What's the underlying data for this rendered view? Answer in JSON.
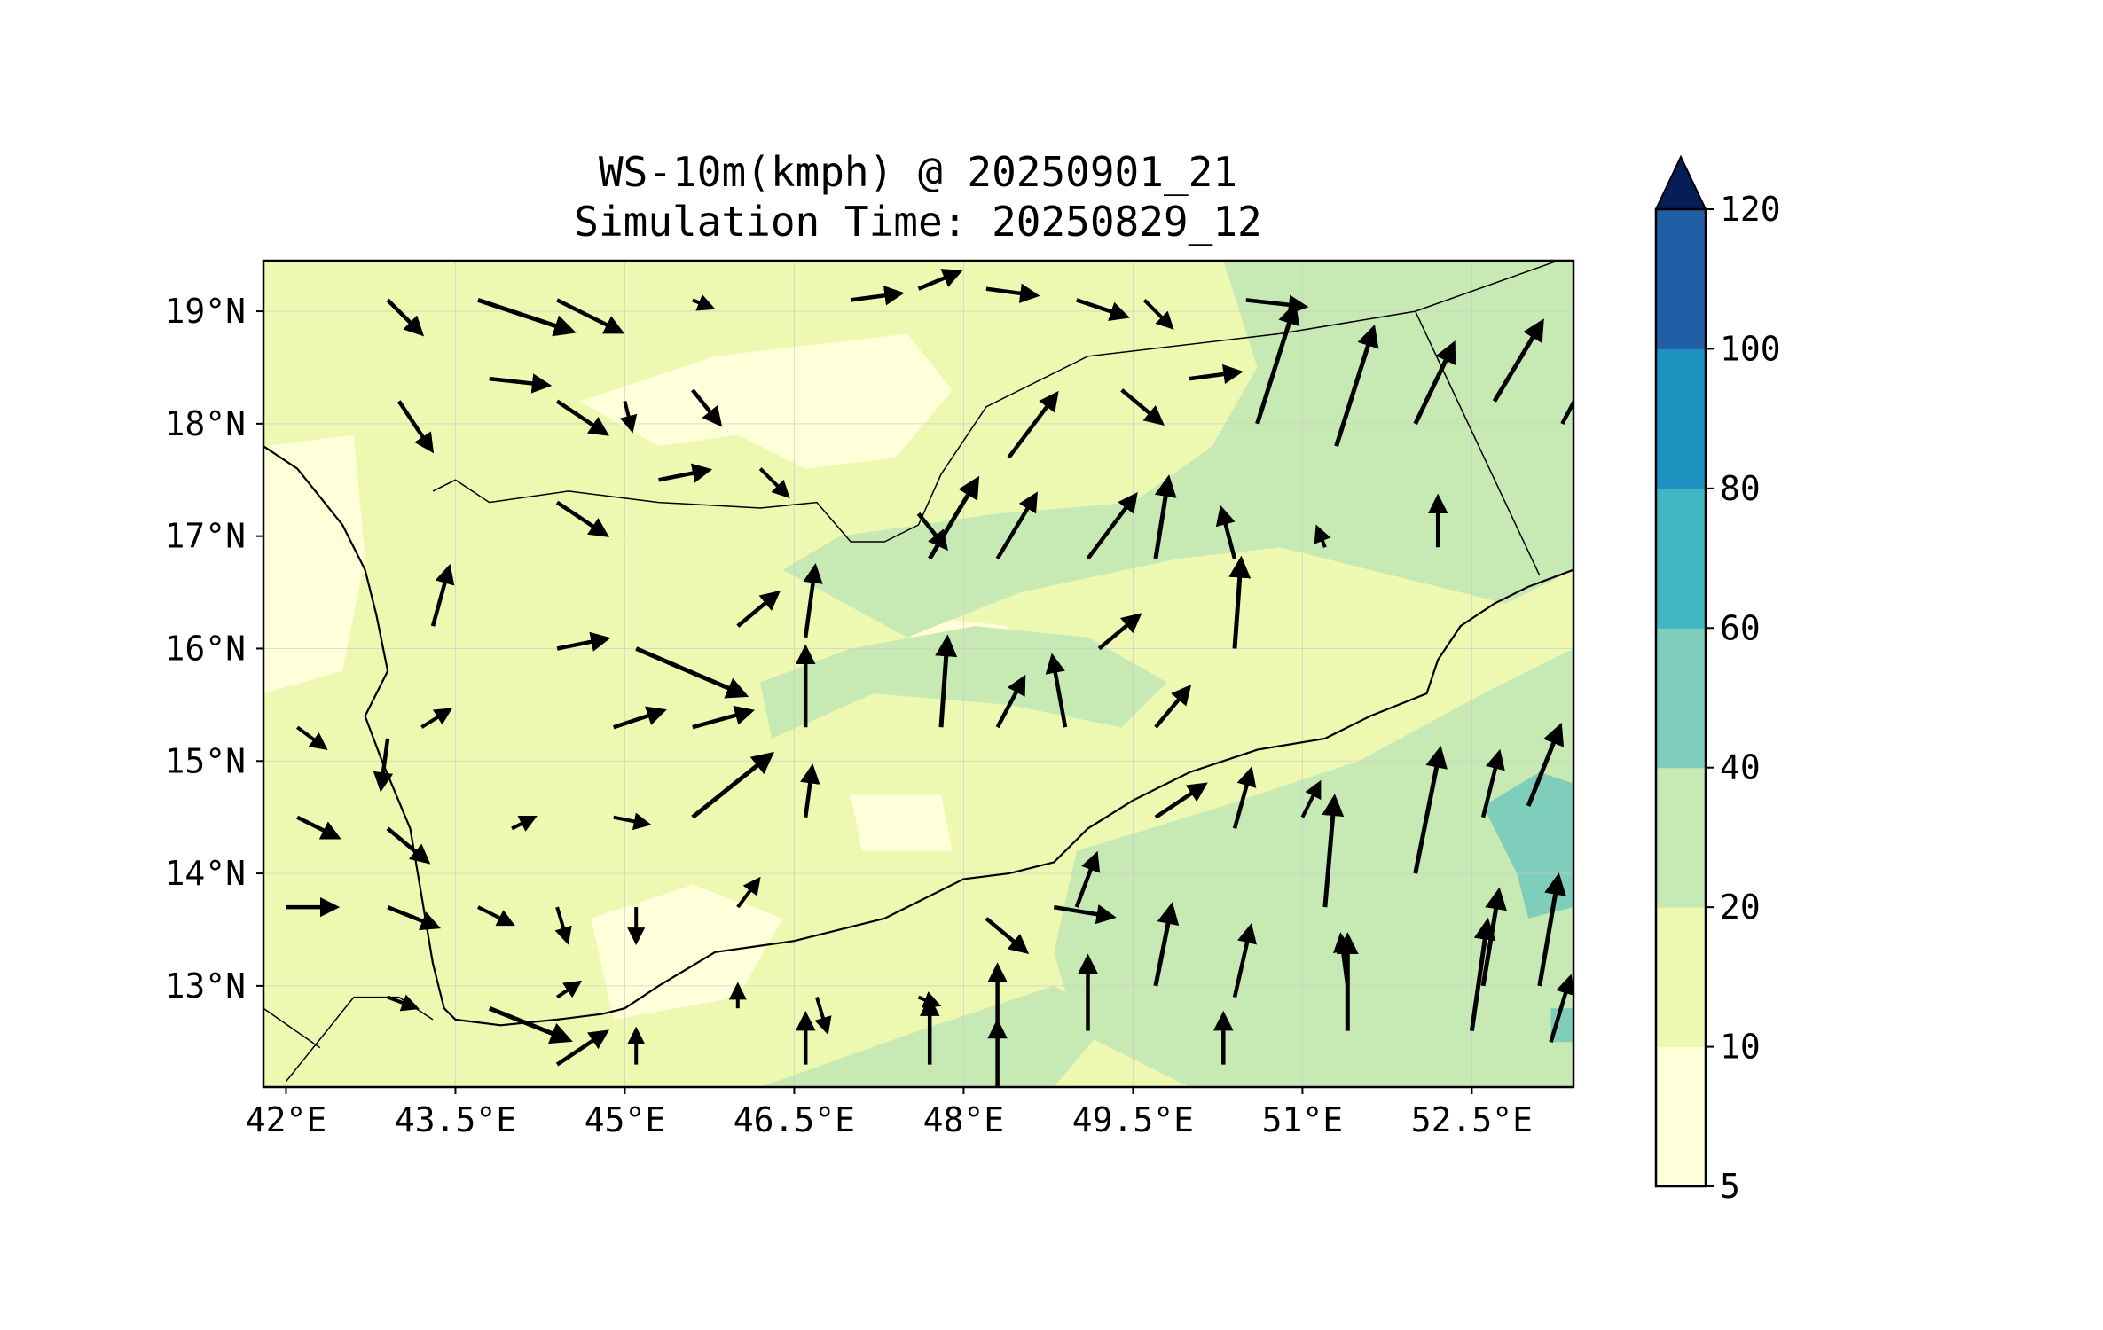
{
  "chart_data": {
    "type": "heatmap",
    "title": "WS-10m(kmph) @ 20250901_21",
    "subtitle": "Simulation Time: 20250829_12",
    "xlim": [
      41.8,
      53.4
    ],
    "ylim": [
      12.1,
      19.45
    ],
    "x_ticks": [
      42,
      43.5,
      45,
      46.5,
      48,
      49.5,
      51,
      52.5
    ],
    "x_tick_labels": [
      "42°E",
      "43.5°E",
      "45°E",
      "46.5°E",
      "48°E",
      "49.5°E",
      "51°E",
      "52.5°E"
    ],
    "y_ticks": [
      13,
      14,
      15,
      16,
      17,
      18,
      19
    ],
    "y_tick_labels": [
      "13°N",
      "14°N",
      "15°N",
      "16°N",
      "17°N",
      "18°N",
      "19°N"
    ],
    "grid": true,
    "colorbar": {
      "levels": [
        5,
        10,
        20,
        40,
        60,
        80,
        100,
        120
      ],
      "labels": [
        "5",
        "10",
        "20",
        "40",
        "60",
        "80",
        "100",
        "120"
      ],
      "colors": [
        "#ffffd9",
        "#edf8b1",
        "#c7e9b4",
        "#7fcdbb",
        "#41b6c4",
        "#1d91c0",
        "#225ea8",
        "#0c2c84"
      ],
      "extend_color": "#081d58",
      "extend": "max"
    },
    "fill_regions": [
      {
        "name": "low-wind-white",
        "level": 5,
        "polygon": [
          [
            44.6,
            18.2
          ],
          [
            45.8,
            18.6
          ],
          [
            47.5,
            18.8
          ],
          [
            47.9,
            18.3
          ],
          [
            47.4,
            17.7
          ],
          [
            46.6,
            17.6
          ],
          [
            46.0,
            17.9
          ],
          [
            45.3,
            17.8
          ]
        ]
      },
      {
        "name": "low-wind-white",
        "level": 5,
        "polygon": [
          [
            41.8,
            17.8
          ],
          [
            42.6,
            17.9
          ],
          [
            42.7,
            16.8
          ],
          [
            42.5,
            15.8
          ],
          [
            41.8,
            15.6
          ]
        ]
      },
      {
        "name": "low-wind-white",
        "level": 5,
        "polygon": [
          [
            44.7,
            13.6
          ],
          [
            45.6,
            13.9
          ],
          [
            46.4,
            13.6
          ],
          [
            46.0,
            12.9
          ],
          [
            44.9,
            12.7
          ]
        ]
      },
      {
        "name": "low-wind-white",
        "level": 5,
        "polygon": [
          [
            47.0,
            14.7
          ],
          [
            47.8,
            14.7
          ],
          [
            47.9,
            14.2
          ],
          [
            47.1,
            14.2
          ]
        ]
      },
      {
        "name": "low-wind-white",
        "level": 5,
        "polygon": [
          [
            47.5,
            16.3
          ],
          [
            48.4,
            16.2
          ],
          [
            48.4,
            15.8
          ],
          [
            47.6,
            15.8
          ]
        ]
      },
      {
        "name": "moderate-wind",
        "level": 20,
        "polygon": [
          [
            50.3,
            19.45
          ],
          [
            53.4,
            19.45
          ],
          [
            53.4,
            16.7
          ],
          [
            52.8,
            16.4
          ],
          [
            51.6,
            16.7
          ],
          [
            50.8,
            16.9
          ],
          [
            49.9,
            16.8
          ],
          [
            48.5,
            16.5
          ],
          [
            47.5,
            16.1
          ],
          [
            46.4,
            16.7
          ],
          [
            46.9,
            17.0
          ],
          [
            48.3,
            17.2
          ],
          [
            49.5,
            17.3
          ],
          [
            50.2,
            17.8
          ],
          [
            50.6,
            18.5
          ]
        ]
      },
      {
        "name": "moderate-wind",
        "level": 20,
        "polygon": [
          [
            46.3,
            15.2
          ],
          [
            47.2,
            15.6
          ],
          [
            48.4,
            15.5
          ],
          [
            49.4,
            15.3
          ],
          [
            49.8,
            15.7
          ],
          [
            49.1,
            16.1
          ],
          [
            48.1,
            16.2
          ],
          [
            47.0,
            16.0
          ],
          [
            46.2,
            15.7
          ]
        ]
      },
      {
        "name": "moderate-wind",
        "level": 20,
        "polygon": [
          [
            49.0,
            14.2
          ],
          [
            50.3,
            14.6
          ],
          [
            51.5,
            15.0
          ],
          [
            52.6,
            15.6
          ],
          [
            53.4,
            16.0
          ],
          [
            53.4,
            12.1
          ],
          [
            50.0,
            12.1
          ],
          [
            49.0,
            12.6
          ],
          [
            48.8,
            13.3
          ]
        ]
      },
      {
        "name": "moderate-wind",
        "level": 20,
        "polygon": [
          [
            46.2,
            12.1
          ],
          [
            47.6,
            12.6
          ],
          [
            48.8,
            13.0
          ],
          [
            49.3,
            12.7
          ],
          [
            48.8,
            12.1
          ]
        ]
      },
      {
        "name": "strong-wind",
        "level": 40,
        "polygon": [
          [
            52.6,
            14.6
          ],
          [
            53.1,
            14.9
          ],
          [
            53.4,
            14.8
          ],
          [
            53.4,
            13.7
          ],
          [
            53.0,
            13.6
          ],
          [
            52.9,
            14.0
          ]
        ]
      },
      {
        "name": "strong-wind",
        "level": 40,
        "polygon": [
          [
            53.2,
            12.8
          ],
          [
            53.4,
            12.8
          ],
          [
            53.4,
            12.5
          ],
          [
            53.2,
            12.5
          ]
        ]
      }
    ],
    "coastline": [
      [
        41.8,
        17.8
      ],
      [
        42.1,
        17.6
      ],
      [
        42.5,
        17.1
      ],
      [
        42.7,
        16.7
      ],
      [
        42.8,
        16.3
      ],
      [
        42.9,
        15.8
      ],
      [
        42.7,
        15.4
      ],
      [
        42.85,
        15.0
      ],
      [
        43.1,
        14.4
      ],
      [
        43.2,
        13.8
      ],
      [
        43.3,
        13.2
      ],
      [
        43.4,
        12.8
      ],
      [
        43.5,
        12.7
      ],
      [
        43.9,
        12.65
      ],
      [
        44.4,
        12.7
      ],
      [
        44.8,
        12.75
      ],
      [
        45.0,
        12.8
      ],
      [
        45.3,
        13.0
      ],
      [
        45.8,
        13.3
      ],
      [
        46.5,
        13.4
      ],
      [
        47.3,
        13.6
      ],
      [
        48.0,
        13.95
      ],
      [
        48.4,
        14.0
      ],
      [
        48.8,
        14.1
      ],
      [
        49.1,
        14.4
      ],
      [
        49.5,
        14.65
      ],
      [
        50.0,
        14.9
      ],
      [
        50.6,
        15.1
      ],
      [
        51.2,
        15.2
      ],
      [
        51.6,
        15.4
      ],
      [
        52.1,
        15.6
      ],
      [
        52.2,
        15.9
      ],
      [
        52.4,
        16.2
      ],
      [
        52.7,
        16.4
      ],
      [
        53.0,
        16.55
      ],
      [
        53.4,
        16.7
      ]
    ],
    "borders": [
      [
        [
          43.3,
          17.4
        ],
        [
          43.5,
          17.5
        ],
        [
          43.8,
          17.3
        ],
        [
          44.5,
          17.4
        ],
        [
          45.3,
          17.3
        ],
        [
          46.2,
          17.25
        ],
        [
          46.7,
          17.3
        ],
        [
          47.0,
          16.95
        ],
        [
          47.3,
          16.95
        ],
        [
          47.6,
          17.1
        ],
        [
          47.8,
          17.55
        ],
        [
          48.2,
          18.15
        ],
        [
          49.1,
          18.6
        ],
        [
          50.8,
          18.8
        ],
        [
          52.0,
          19.0
        ],
        [
          53.4,
          19.5
        ]
      ],
      [
        [
          52.0,
          19.0
        ],
        [
          53.1,
          16.65
        ]
      ],
      [
        [
          42.0,
          12.15
        ],
        [
          42.6,
          12.9
        ],
        [
          43.0,
          12.9
        ],
        [
          43.3,
          12.7
        ]
      ],
      [
        [
          41.8,
          12.8
        ],
        [
          42.3,
          12.45
        ]
      ]
    ],
    "wind_vectors": [
      {
        "lon": 42.9,
        "lat": 19.1,
        "u": 1.0,
        "v": -1.0
      },
      {
        "lon": 43.7,
        "lat": 19.1,
        "u": 3.0,
        "v": -1.0
      },
      {
        "lon": 44.4,
        "lat": 19.1,
        "u": 2.0,
        "v": -1.0
      },
      {
        "lon": 45.6,
        "lat": 19.1,
        "u": 0.5,
        "v": -0.2
      },
      {
        "lon": 47.0,
        "lat": 19.1,
        "u": 1.5,
        "v": 0.2
      },
      {
        "lon": 47.6,
        "lat": 19.2,
        "u": 1.2,
        "v": 0.5
      },
      {
        "lon": 48.2,
        "lat": 19.2,
        "u": 1.5,
        "v": -0.2
      },
      {
        "lon": 49.0,
        "lat": 19.1,
        "u": 1.5,
        "v": -0.5
      },
      {
        "lon": 49.6,
        "lat": 19.1,
        "u": 0.8,
        "v": -0.8
      },
      {
        "lon": 50.5,
        "lat": 19.1,
        "u": 1.8,
        "v": -0.2
      },
      {
        "lon": 43.0,
        "lat": 18.2,
        "u": 1.0,
        "v": -1.5
      },
      {
        "lon": 43.8,
        "lat": 18.4,
        "u": 1.8,
        "v": -0.2
      },
      {
        "lon": 44.4,
        "lat": 18.2,
        "u": 1.5,
        "v": -1.0
      },
      {
        "lon": 45.0,
        "lat": 18.2,
        "u": 0.2,
        "v": -0.8
      },
      {
        "lon": 45.6,
        "lat": 18.3,
        "u": 0.8,
        "v": -1.0
      },
      {
        "lon": 48.4,
        "lat": 17.7,
        "u": 1.5,
        "v": 2.0
      },
      {
        "lon": 49.4,
        "lat": 18.3,
        "u": 1.2,
        "v": -1.0
      },
      {
        "lon": 50.0,
        "lat": 18.4,
        "u": 1.5,
        "v": 0.2
      },
      {
        "lon": 50.6,
        "lat": 18.0,
        "u": 1.2,
        "v": 3.8
      },
      {
        "lon": 51.3,
        "lat": 17.8,
        "u": 1.2,
        "v": 3.8
      },
      {
        "lon": 52.0,
        "lat": 18.0,
        "u": 1.2,
        "v": 2.5
      },
      {
        "lon": 52.7,
        "lat": 18.2,
        "u": 1.5,
        "v": 2.5
      },
      {
        "lon": 53.3,
        "lat": 18.0,
        "u": 0.8,
        "v": 1.5
      },
      {
        "lon": 44.4,
        "lat": 17.3,
        "u": 1.5,
        "v": -1.0
      },
      {
        "lon": 45.3,
        "lat": 17.5,
        "u": 1.5,
        "v": 0.3
      },
      {
        "lon": 46.2,
        "lat": 17.6,
        "u": 0.8,
        "v": -0.8
      },
      {
        "lon": 47.6,
        "lat": 17.2,
        "u": 0.8,
        "v": -1.0
      },
      {
        "lon": 47.7,
        "lat": 16.8,
        "u": 1.5,
        "v": 2.5
      },
      {
        "lon": 48.3,
        "lat": 16.8,
        "u": 1.2,
        "v": 2.0
      },
      {
        "lon": 49.1,
        "lat": 16.8,
        "u": 1.5,
        "v": 2.0
      },
      {
        "lon": 49.7,
        "lat": 16.8,
        "u": 0.4,
        "v": 2.5
      },
      {
        "lon": 50.4,
        "lat": 16.8,
        "u": -0.4,
        "v": 1.5
      },
      {
        "lon": 51.2,
        "lat": 16.9,
        "u": -0.2,
        "v": 0.5
      },
      {
        "lon": 52.2,
        "lat": 16.9,
        "u": 0.0,
        "v": 1.5
      },
      {
        "lon": 43.3,
        "lat": 16.2,
        "u": 0.5,
        "v": 1.8
      },
      {
        "lon": 44.4,
        "lat": 16.0,
        "u": 1.5,
        "v": 0.3
      },
      {
        "lon": 45.1,
        "lat": 16.0,
        "u": 3.5,
        "v": -1.5
      },
      {
        "lon": 46.0,
        "lat": 16.2,
        "u": 1.2,
        "v": 1.0
      },
      {
        "lon": 46.6,
        "lat": 16.1,
        "u": 0.3,
        "v": 2.2
      },
      {
        "lon": 47.8,
        "lat": 15.3,
        "u": 0.2,
        "v": 2.8
      },
      {
        "lon": 48.3,
        "lat": 15.3,
        "u": 0.8,
        "v": 1.5
      },
      {
        "lon": 48.9,
        "lat": 15.3,
        "u": -0.4,
        "v": 2.2
      },
      {
        "lon": 49.2,
        "lat": 16.0,
        "u": 1.2,
        "v": 1.0
      },
      {
        "lon": 49.7,
        "lat": 15.3,
        "u": 1.0,
        "v": 1.2
      },
      {
        "lon": 50.4,
        "lat": 16.0,
        "u": 0.2,
        "v": 2.8
      },
      {
        "lon": 43.2,
        "lat": 15.3,
        "u": 0.8,
        "v": 0.5
      },
      {
        "lon": 44.9,
        "lat": 15.3,
        "u": 1.5,
        "v": 0.5
      },
      {
        "lon": 45.6,
        "lat": 15.3,
        "u": 1.8,
        "v": 0.5
      },
      {
        "lon": 46.6,
        "lat": 15.3,
        "u": 0.0,
        "v": 2.5
      },
      {
        "lon": 42.1,
        "lat": 15.3,
        "u": 0.8,
        "v": -0.6
      },
      {
        "lon": 42.9,
        "lat": 15.2,
        "u": -0.2,
        "v": -1.5
      },
      {
        "lon": 42.1,
        "lat": 14.5,
        "u": 1.2,
        "v": -0.6
      },
      {
        "lon": 42.9,
        "lat": 14.4,
        "u": 1.2,
        "v": -1.0
      },
      {
        "lon": 44.0,
        "lat": 14.4,
        "u": 0.6,
        "v": 0.3
      },
      {
        "lon": 44.9,
        "lat": 14.5,
        "u": 1.0,
        "v": -0.2
      },
      {
        "lon": 45.6,
        "lat": 14.5,
        "u": 2.5,
        "v": 2.0
      },
      {
        "lon": 46.6,
        "lat": 14.5,
        "u": 0.2,
        "v": 1.5
      },
      {
        "lon": 49.0,
        "lat": 13.7,
        "u": 0.6,
        "v": 1.6
      },
      {
        "lon": 49.7,
        "lat": 14.5,
        "u": 1.5,
        "v": 1.0
      },
      {
        "lon": 50.4,
        "lat": 14.4,
        "u": 0.5,
        "v": 1.8
      },
      {
        "lon": 51.0,
        "lat": 14.5,
        "u": 0.5,
        "v": 1.0
      },
      {
        "lon": 51.2,
        "lat": 13.7,
        "u": 0.3,
        "v": 3.5
      },
      {
        "lon": 52.0,
        "lat": 14.0,
        "u": 0.8,
        "v": 4.0
      },
      {
        "lon": 52.6,
        "lat": 14.5,
        "u": 0.5,
        "v": 2.0
      },
      {
        "lon": 53.0,
        "lat": 14.6,
        "u": 1.0,
        "v": 2.5
      },
      {
        "lon": 42.0,
        "lat": 13.7,
        "u": 1.5,
        "v": 0.0
      },
      {
        "lon": 42.9,
        "lat": 13.7,
        "u": 1.5,
        "v": -0.6
      },
      {
        "lon": 43.7,
        "lat": 13.7,
        "u": 1.0,
        "v": -0.5
      },
      {
        "lon": 44.4,
        "lat": 13.7,
        "u": 0.3,
        "v": -1.0
      },
      {
        "lon": 45.1,
        "lat": 13.7,
        "u": 0.0,
        "v": -1.0
      },
      {
        "lon": 46.0,
        "lat": 13.7,
        "u": 0.6,
        "v": 0.8
      },
      {
        "lon": 48.2,
        "lat": 13.6,
        "u": 1.2,
        "v": -1.0
      },
      {
        "lon": 48.8,
        "lat": 13.7,
        "u": 1.8,
        "v": -0.3
      },
      {
        "lon": 49.7,
        "lat": 13.0,
        "u": 0.5,
        "v": 2.5
      },
      {
        "lon": 50.4,
        "lat": 12.9,
        "u": 0.5,
        "v": 2.2
      },
      {
        "lon": 51.4,
        "lat": 13.0,
        "u": -0.2,
        "v": 1.5
      },
      {
        "lon": 52.6,
        "lat": 13.0,
        "u": 0.5,
        "v": 3.0
      },
      {
        "lon": 53.1,
        "lat": 13.0,
        "u": 0.6,
        "v": 3.5
      },
      {
        "lon": 42.9,
        "lat": 12.9,
        "u": 0.8,
        "v": -0.3
      },
      {
        "lon": 43.8,
        "lat": 12.8,
        "u": 2.5,
        "v": -1.0
      },
      {
        "lon": 44.4,
        "lat": 12.9,
        "u": 0.6,
        "v": 0.4
      },
      {
        "lon": 46.0,
        "lat": 12.8,
        "u": 0.0,
        "v": 0.6
      },
      {
        "lon": 46.7,
        "lat": 12.9,
        "u": 0.3,
        "v": -1.0
      },
      {
        "lon": 47.6,
        "lat": 12.9,
        "u": 0.5,
        "v": -0.2
      },
      {
        "lon": 48.3,
        "lat": 12.6,
        "u": 0.0,
        "v": 2.0
      },
      {
        "lon": 49.1,
        "lat": 12.6,
        "u": 0.0,
        "v": 2.3
      },
      {
        "lon": 50.3,
        "lat": 12.3,
        "u": 0.0,
        "v": 1.5
      },
      {
        "lon": 51.4,
        "lat": 12.6,
        "u": 0.0,
        "v": 3.0
      },
      {
        "lon": 52.5,
        "lat": 12.6,
        "u": 0.5,
        "v": 3.5
      },
      {
        "lon": 53.2,
        "lat": 12.5,
        "u": 0.6,
        "v": 2.0
      },
      {
        "lon": 44.4,
        "lat": 12.3,
        "u": 1.5,
        "v": 1.0
      },
      {
        "lon": 45.1,
        "lat": 12.3,
        "u": 0.0,
        "v": 1.0
      },
      {
        "lon": 46.6,
        "lat": 12.3,
        "u": 0.0,
        "v": 1.5
      },
      {
        "lon": 47.7,
        "lat": 12.3,
        "u": 0.0,
        "v": 2.0
      },
      {
        "lon": 48.3,
        "lat": 12.1,
        "u": 0.0,
        "v": 2.0
      }
    ]
  }
}
